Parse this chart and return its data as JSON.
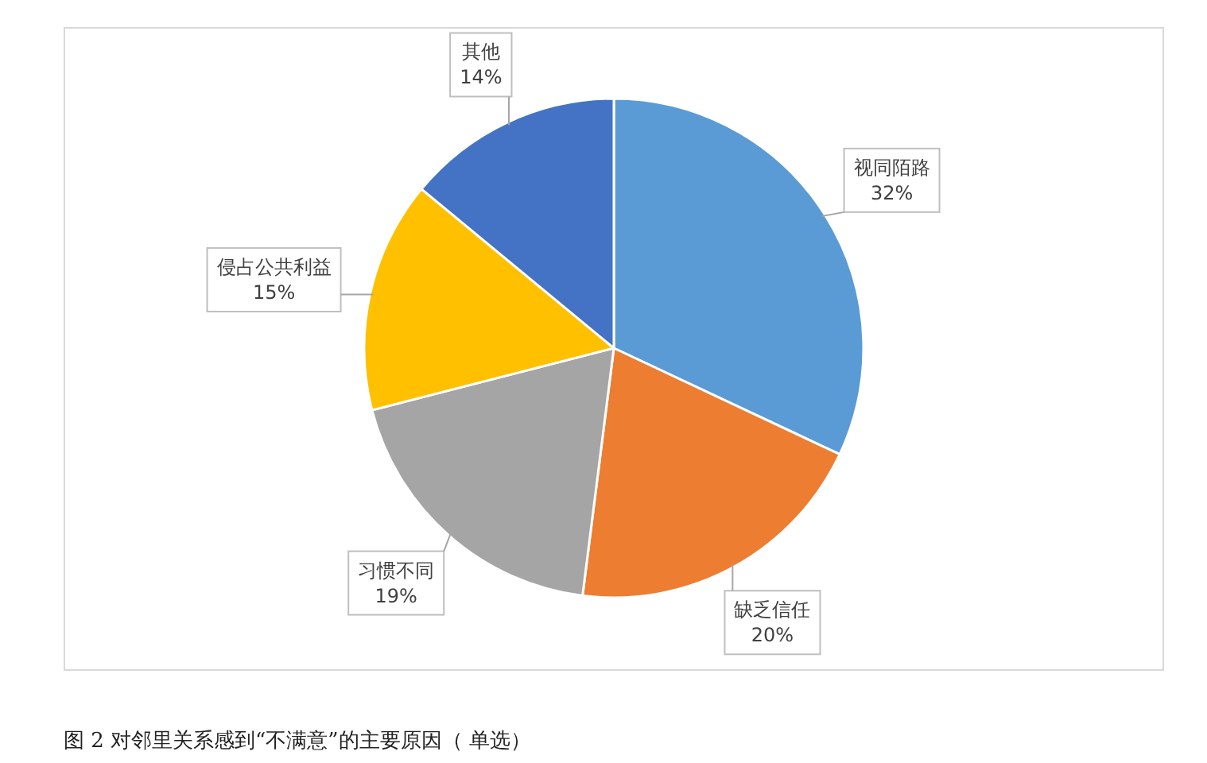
{
  "chart_data": {
    "type": "pie",
    "categories": [
      "视同陌路",
      "缺乏信任",
      "习惯不同",
      "侵占公共利益",
      "其他"
    ],
    "values": [
      32,
      20,
      19,
      15,
      14
    ],
    "colors": [
      "#5b9bd5",
      "#ed7d31",
      "#a5a5a5",
      "#ffc000",
      "#4472c4"
    ],
    "value_labels": [
      "32%",
      "20%",
      "19%",
      "15%",
      "14%"
    ],
    "annotations": [
      "图 2 对邻里关系感到“不满意”的主要原因（ 单选）"
    ]
  }
}
